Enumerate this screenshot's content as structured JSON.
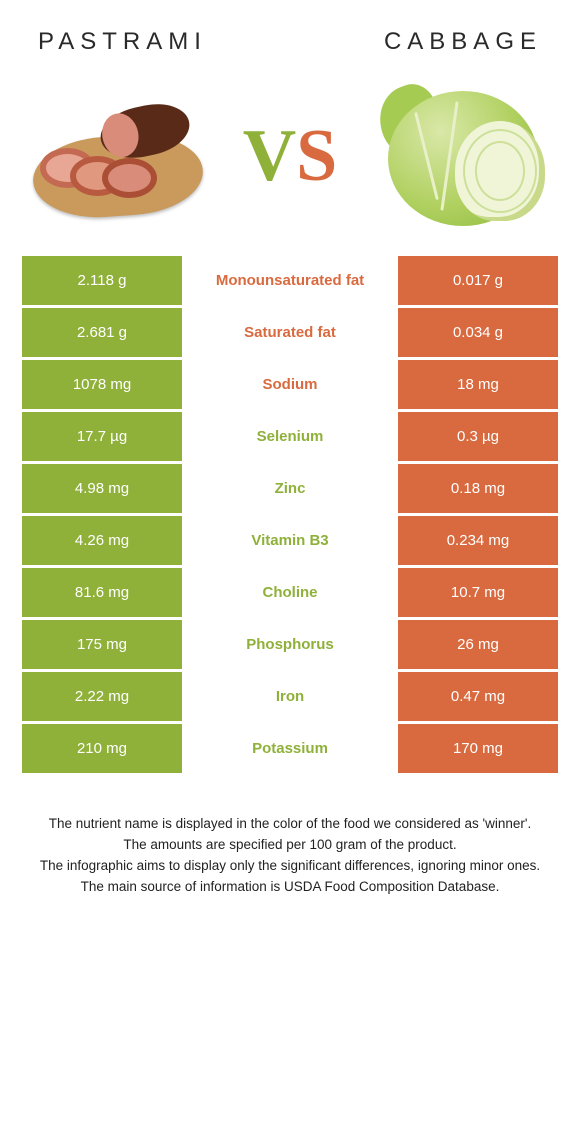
{
  "header": {
    "left_title": "Pastrami",
    "right_title": "Cabbage"
  },
  "vs": {
    "v": "V",
    "s": "S"
  },
  "colors": {
    "left_bg": "#8fb13a",
    "right_bg": "#d96a3f",
    "left_text": "#8fb13a",
    "right_text": "#d96a3f",
    "cell_text": "#ffffff"
  },
  "table": {
    "type": "table",
    "columns": [
      "left_value",
      "nutrient",
      "right_value"
    ],
    "rows": [
      {
        "left": "2.118 g",
        "label": "Monounsaturated fat",
        "right": "0.017 g",
        "winner": "right"
      },
      {
        "left": "2.681 g",
        "label": "Saturated fat",
        "right": "0.034 g",
        "winner": "right"
      },
      {
        "left": "1078 mg",
        "label": "Sodium",
        "right": "18 mg",
        "winner": "right"
      },
      {
        "left": "17.7 µg",
        "label": "Selenium",
        "right": "0.3 µg",
        "winner": "left"
      },
      {
        "left": "4.98 mg",
        "label": "Zinc",
        "right": "0.18 mg",
        "winner": "left"
      },
      {
        "left": "4.26 mg",
        "label": "Vitamin B3",
        "right": "0.234 mg",
        "winner": "left"
      },
      {
        "left": "81.6 mg",
        "label": "Choline",
        "right": "10.7 mg",
        "winner": "left"
      },
      {
        "left": "175 mg",
        "label": "Phosphorus",
        "right": "26 mg",
        "winner": "left"
      },
      {
        "left": "2.22 mg",
        "label": "Iron",
        "right": "0.47 mg",
        "winner": "left"
      },
      {
        "left": "210 mg",
        "label": "Potassium",
        "right": "170 mg",
        "winner": "left"
      }
    ]
  },
  "footnotes": [
    "The nutrient name is displayed in the color of the food we considered as 'winner'.",
    "The amounts are specified per 100 gram of the product.",
    "The infographic aims to display only the significant differences, ignoring minor ones.",
    "The main source of information is USDA Food Composition Database."
  ]
}
